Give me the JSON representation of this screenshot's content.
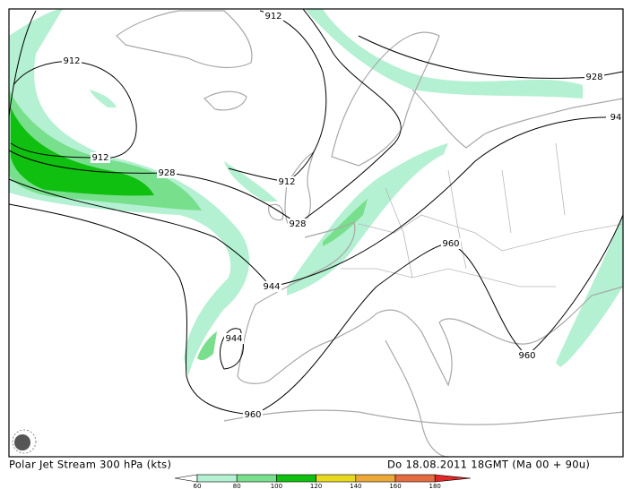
{
  "map": {
    "contour_labels": [
      "912",
      "912",
      "912",
      "912",
      "928",
      "928",
      "928",
      "944",
      "944",
      "960",
      "960",
      "960",
      "94"
    ],
    "legend": {
      "ticks": [
        "60",
        "80",
        "100",
        "120",
        "140",
        "160",
        "180"
      ],
      "colors": [
        "#b4f0d2",
        "#78e08c",
        "#10c010",
        "#e8d820",
        "#eca838",
        "#e46c40",
        "#e02828"
      ]
    }
  },
  "caption": {
    "left": "Polar Jet Stream 300 hPa (kts)",
    "right": "Do 18.08.2011 18GMT (Ma 00 + 90u)"
  }
}
